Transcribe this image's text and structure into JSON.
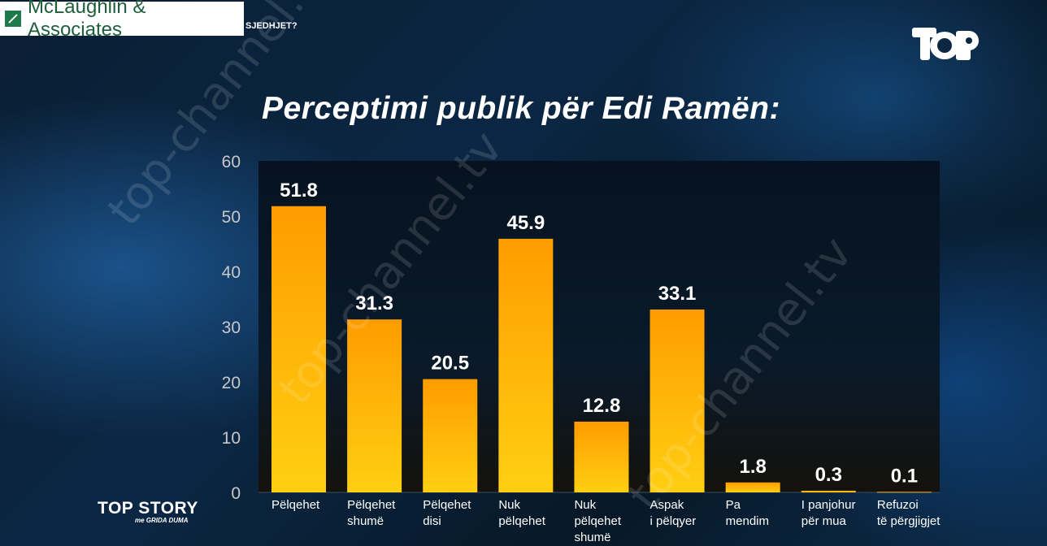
{
  "source": {
    "logo": "McLaughlin & Associates",
    "question_snippet": "SJEDHJET?"
  },
  "channel": {
    "logo_text": "TOP",
    "watermark": "top-channel.tv"
  },
  "show": {
    "name": "TOP STORY",
    "host": "me GRIDA DUMA"
  },
  "colors": {
    "bar_top": "#ff9c00",
    "bar_bottom": "#ffcf12",
    "text": "#ffffff",
    "axis": "#c8c8c8"
  },
  "chart_data": {
    "type": "bar",
    "title": "Perceptimi publik për Edi Ramën:",
    "categories": [
      [
        "Pëlqehet"
      ],
      [
        "Pëlqehet",
        "shumë"
      ],
      [
        "Pëlqehet",
        "disi"
      ],
      [
        "Nuk",
        "pëlqehet"
      ],
      [
        "Nuk",
        "pëlqehet",
        "shumë"
      ],
      [
        "Aspak",
        "i pëlqyer"
      ],
      [
        "Pa",
        "mendim"
      ],
      [
        "I panjohur",
        "për mua"
      ],
      [
        "Refuzoi",
        "të përgjigjet"
      ]
    ],
    "values": [
      51.8,
      31.3,
      20.5,
      45.9,
      12.8,
      33.1,
      1.8,
      0.3,
      0.1
    ],
    "value_labels": [
      "51.8",
      "31.3",
      "20.5",
      "45.9",
      "12.8",
      "33.1",
      "1.8",
      "0.3",
      "0.1"
    ],
    "yticks": [
      "0",
      "10",
      "20",
      "30",
      "40",
      "50",
      "60"
    ],
    "ylim": [
      0,
      60
    ],
    "grid": false,
    "legend": "none"
  }
}
